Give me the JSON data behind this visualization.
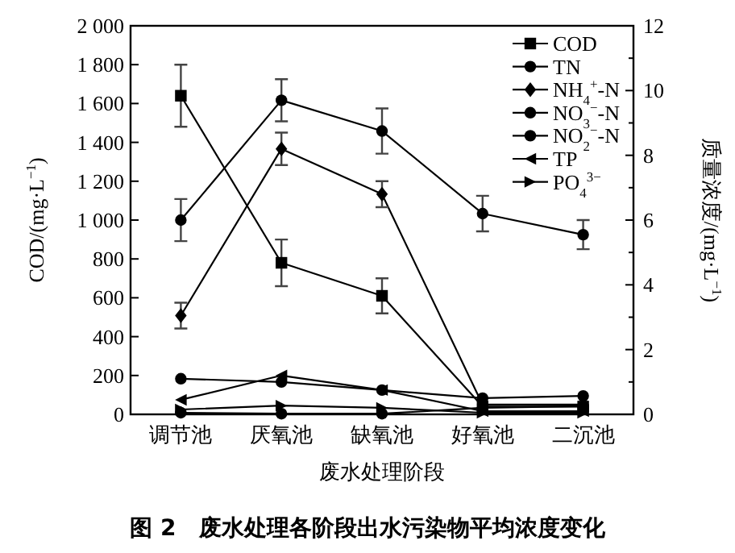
{
  "chart_data": {
    "type": "line",
    "title": "图 2　废水处理各阶段出水污染物平均浓度变化",
    "xlabel": "废水处理阶段",
    "ylabel": "COD/(mg·L$^{−1}$)",
    "y2label": "质量浓度/(mg·L$^{−1}$)",
    "categories": [
      "调节池",
      "厌氧池",
      "缺氧池",
      "好氧池",
      "二沉池"
    ],
    "ylim": [
      0,
      2000
    ],
    "yticks": [
      0,
      200,
      400,
      600,
      800,
      {
        "value": 1000,
        "label": "1 000"
      },
      {
        "value": 1200,
        "label": "1 200"
      },
      {
        "value": 1400,
        "label": "1 400"
      },
      {
        "value": 1600,
        "label": "1 600"
      },
      {
        "value": 1800,
        "label": "1 800"
      },
      {
        "value": 2000,
        "label": "2 000"
      }
    ],
    "y2lim": [
      0,
      12
    ],
    "y2ticks": [
      0,
      {
        "value": 1,
        "label": null
      },
      2,
      {
        "value": 3,
        "label": null
      },
      4,
      {
        "value": 5,
        "label": null
      },
      6,
      {
        "value": 7,
        "label": null
      },
      8,
      {
        "value": 9,
        "label": null
      },
      10,
      {
        "value": 11,
        "label": null
      },
      12
    ],
    "legend": "top right",
    "series": [
      {
        "name": "COD",
        "color": "#000000",
        "marker": "square",
        "values": [
          1640,
          780,
          610,
          40,
          40
        ],
        "errors": [
          160,
          120,
          90,
          null,
          null
        ]
      },
      {
        "name": "TN",
        "color": "#000000",
        "marker": "circle",
        "axis": "y2",
        "values": [
          6.0,
          9.7,
          8.75,
          6.2,
          5.55
        ],
        "errors": [
          0.65,
          0.65,
          0.7,
          0.55,
          0.45
        ]
      },
      {
        "name": "NH$_{4}$$^{+}$-N",
        "color": "#000000",
        "marker": "diamond",
        "axis": "y2",
        "values": [
          3.05,
          8.2,
          6.8,
          0.3,
          0.3
        ],
        "errors": [
          0.4,
          0.5,
          0.4,
          null,
          null
        ]
      },
      {
        "name": "NO$_{3}$$^{−}$-N",
        "color": "#000000",
        "marker": "circle",
        "axis": "y2",
        "values": [
          1.1,
          1.0,
          0.75,
          0.5,
          0.57
        ]
      },
      {
        "name": "NO$_{2}$$^{−}$-N",
        "color": "#000000",
        "marker": "circle",
        "axis": "y2",
        "values": [
          0.05,
          0.02,
          0.02,
          0.2,
          0.25
        ]
      },
      {
        "name": "TP",
        "color": "#000000",
        "marker": "triangle-left",
        "axis": "y2",
        "values": [
          0.45,
          1.2,
          0.75,
          0.1,
          0.1
        ]
      },
      {
        "name": "PO$_{4}$$^{3−}$",
        "color": "#000000",
        "marker": "triangle-right",
        "axis": "y2",
        "values": [
          0.15,
          0.27,
          0.2,
          0.05,
          0.05
        ]
      }
    ]
  }
}
